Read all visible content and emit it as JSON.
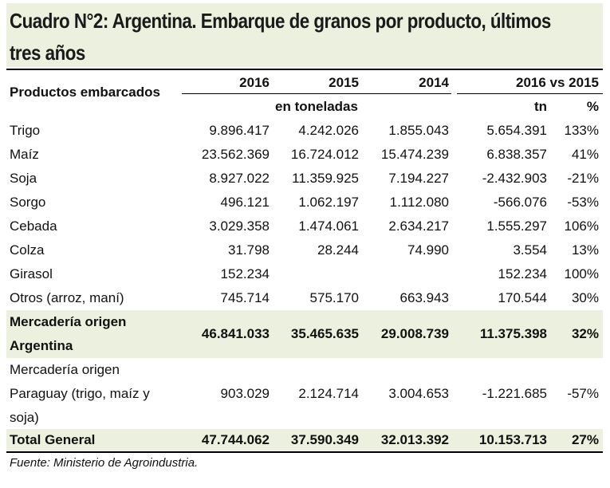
{
  "title": {
    "line1": "Cuadro N°2: Argentina. Embarque de granos por producto, últimos",
    "line2": "tres años"
  },
  "header": {
    "product_label": "Productos embarcados",
    "years": [
      "2016",
      "2015",
      "2014"
    ],
    "comparison": "2016 vs 2015",
    "units": "en toneladas",
    "tn": "tn",
    "pct": "%"
  },
  "rows": [
    {
      "product": "Trigo",
      "y2016": "9.896.417",
      "y2015": "4.242.026",
      "y2014": "1.855.043",
      "tn": "5.654.391",
      "pct": "133%"
    },
    {
      "product": "Maíz",
      "y2016": "23.562.369",
      "y2015": "16.724.012",
      "y2014": "15.474.239",
      "tn": "6.838.357",
      "pct": "41%"
    },
    {
      "product": "Soja",
      "y2016": "8.927.022",
      "y2015": "11.359.925",
      "y2014": "7.194.227",
      "tn": "-2.432.903",
      "pct": "-21%"
    },
    {
      "product": "Sorgo",
      "y2016": "496.121",
      "y2015": "1.062.197",
      "y2014": "1.112.080",
      "tn": "-566.076",
      "pct": "-53%"
    },
    {
      "product": "Cebada",
      "y2016": "3.029.358",
      "y2015": "1.474.061",
      "y2014": "2.634.217",
      "tn": "1.555.297",
      "pct": "106%"
    },
    {
      "product": "Colza",
      "y2016": "31.798",
      "y2015": "28.244",
      "y2014": "74.990",
      "tn": "3.554",
      "pct": "13%"
    },
    {
      "product": "Girasol",
      "y2016": "152.234",
      "y2015": "",
      "y2014": "",
      "tn": "152.234",
      "pct": "100%"
    },
    {
      "product": "Otros (arroz, maní)",
      "y2016": "745.714",
      "y2015": "575.170",
      "y2014": "663.943",
      "tn": "170.544",
      "pct": "30%"
    }
  ],
  "subtotal_argentina": {
    "label_line1": "Mercadería origen",
    "label_line2": "Argentina",
    "y2016": "46.841.033",
    "y2015": "35.465.635",
    "y2014": "29.008.739",
    "tn": "11.375.398",
    "pct": "32%"
  },
  "paraguay": {
    "label_line1": "Mercadería  origen",
    "label_line2": "Paraguay (trigo, maíz y",
    "label_line3": "soja)",
    "y2016": "903.029",
    "y2015": "2.124.714",
    "y2014": "3.004.653",
    "tn": "-1.221.685",
    "pct": "-57%"
  },
  "total": {
    "label": "Total General",
    "y2016": "47.744.062",
    "y2015": "37.590.349",
    "y2014": "32.013.392",
    "tn": "10.153.713",
    "pct": "27%"
  },
  "source": "Fuente: Ministerio de Agroindustria.",
  "colors": {
    "band": "#ebf1de",
    "rule": "#000000"
  }
}
